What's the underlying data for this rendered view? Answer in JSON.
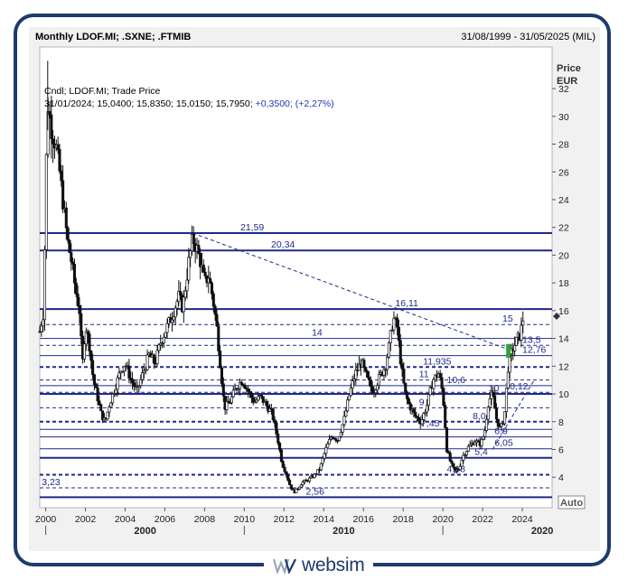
{
  "header": {
    "title": "Monthly LDOF.MI; .SXNE; .FTMIB",
    "date_range": "31/08/1999 - 31/05/2025 (MIL)"
  },
  "legend": {
    "line1": "Cndl; LDOF.MI; Trade Price",
    "line2_values": "31/01/2024; 15,0400; 15,8350; 15,0150; 15,7950;",
    "line2_change": "+0,3500; (+2,27%)"
  },
  "axis": {
    "price_label_1": "Price",
    "price_label_2": "EUR",
    "auto_label": "Auto"
  },
  "logo": {
    "text": "websim"
  },
  "chart_data": {
    "type": "candlestick",
    "title": "Monthly LDOF.MI; .SXNE; .FTMIB",
    "ylabel": "Price EUR",
    "ylim": [
      1.8,
      35
    ],
    "xlim": [
      1999.7,
      2025.5
    ],
    "y_ticks": [
      4,
      6,
      8,
      10,
      12,
      14,
      16,
      18,
      20,
      22,
      24,
      26,
      28,
      30,
      32
    ],
    "x_ticks": [
      "2000",
      "2002",
      "2004",
      "2006",
      "2008",
      "2010",
      "2012",
      "2014",
      "2016",
      "2018",
      "2020",
      "2022",
      "2024"
    ],
    "x_decades": [
      "2000",
      "2010",
      "2020"
    ],
    "grid": false,
    "price_series": [
      [
        1999.7,
        14.5
      ],
      [
        1999.9,
        16.0
      ],
      [
        2000.0,
        25.0
      ],
      [
        2000.1,
        31.0
      ],
      [
        2000.3,
        29.0
      ],
      [
        2000.5,
        28.0
      ],
      [
        2000.7,
        26.0
      ],
      [
        2000.9,
        23.5
      ],
      [
        2001.1,
        21.0
      ],
      [
        2001.3,
        19.5
      ],
      [
        2001.5,
        17.5
      ],
      [
        2001.7,
        16.0
      ],
      [
        2001.85,
        12.0
      ],
      [
        2002.0,
        15.0
      ],
      [
        2002.2,
        13.5
      ],
      [
        2002.4,
        11.0
      ],
      [
        2002.6,
        9.8
      ],
      [
        2002.8,
        8.5
      ],
      [
        2003.0,
        8.0
      ],
      [
        2003.2,
        9.2
      ],
      [
        2003.5,
        10.5
      ],
      [
        2003.8,
        11.8
      ],
      [
        2004.0,
        12.2
      ],
      [
        2004.3,
        11.0
      ],
      [
        2004.6,
        10.2
      ],
      [
        2004.9,
        11.5
      ],
      [
        2005.2,
        12.8
      ],
      [
        2005.5,
        12.2
      ],
      [
        2005.8,
        13.8
      ],
      [
        2006.1,
        14.8
      ],
      [
        2006.4,
        15.8
      ],
      [
        2006.7,
        17.0
      ],
      [
        2006.9,
        16.2
      ],
      [
        2007.2,
        19.5
      ],
      [
        2007.4,
        21.2
      ],
      [
        2007.6,
        20.5
      ],
      [
        2007.8,
        19.5
      ],
      [
        2008.0,
        18.0
      ],
      [
        2008.2,
        18.5
      ],
      [
        2008.4,
        17.0
      ],
      [
        2008.6,
        15.0
      ],
      [
        2008.8,
        12.0
      ],
      [
        2009.0,
        9.0
      ],
      [
        2009.3,
        9.5
      ],
      [
        2009.6,
        10.5
      ],
      [
        2009.9,
        11.0
      ],
      [
        2010.2,
        10.2
      ],
      [
        2010.5,
        9.4
      ],
      [
        2010.8,
        9.8
      ],
      [
        2011.1,
        9.2
      ],
      [
        2011.4,
        8.6
      ],
      [
        2011.7,
        6.6
      ],
      [
        2011.9,
        5.0
      ],
      [
        2012.1,
        4.3
      ],
      [
        2012.3,
        3.4
      ],
      [
        2012.5,
        2.9
      ],
      [
        2012.7,
        3.2
      ],
      [
        2012.9,
        3.6
      ],
      [
        2013.2,
        3.8
      ],
      [
        2013.5,
        4.1
      ],
      [
        2013.8,
        4.6
      ],
      [
        2014.1,
        6.0
      ],
      [
        2014.4,
        7.0
      ],
      [
        2014.7,
        6.7
      ],
      [
        2015.0,
        8.0
      ],
      [
        2015.3,
        10.0
      ],
      [
        2015.6,
        11.5
      ],
      [
        2015.9,
        12.3
      ],
      [
        2016.2,
        11.0
      ],
      [
        2016.5,
        10.2
      ],
      [
        2016.8,
        11.2
      ],
      [
        2017.1,
        12.0
      ],
      [
        2017.3,
        13.5
      ],
      [
        2017.5,
        15.5
      ],
      [
        2017.7,
        14.8
      ],
      [
        2017.9,
        12.0
      ],
      [
        2018.1,
        10.0
      ],
      [
        2018.3,
        9.2
      ],
      [
        2018.6,
        8.4
      ],
      [
        2018.9,
        8.0
      ],
      [
        2019.2,
        9.2
      ],
      [
        2019.5,
        11.0
      ],
      [
        2019.8,
        11.5
      ],
      [
        2020.0,
        10.0
      ],
      [
        2020.2,
        6.0
      ],
      [
        2020.4,
        5.0
      ],
      [
        2020.6,
        4.4
      ],
      [
        2020.8,
        4.6
      ],
      [
        2021.0,
        5.5
      ],
      [
        2021.3,
        6.2
      ],
      [
        2021.6,
        6.6
      ],
      [
        2021.9,
        6.4
      ],
      [
        2022.1,
        7.2
      ],
      [
        2022.3,
        9.5
      ],
      [
        2022.5,
        10.0
      ],
      [
        2022.7,
        8.2
      ],
      [
        2022.9,
        7.4
      ],
      [
        2023.1,
        8.4
      ],
      [
        2023.3,
        12.2
      ],
      [
        2023.5,
        13.2
      ],
      [
        2023.7,
        13.8
      ],
      [
        2023.9,
        14.3
      ],
      [
        2024.08,
        15.79
      ]
    ],
    "horizontal_levels": [
      {
        "label": "21,59",
        "value": 21.59,
        "style": "solid",
        "weight": "heavy"
      },
      {
        "label": "20,34",
        "value": 20.34,
        "style": "solid",
        "weight": "heavy"
      },
      {
        "label": "16,11",
        "value": 16.11,
        "style": "solid",
        "weight": "heavy"
      },
      {
        "label": "15",
        "value": 15.0,
        "style": "dashed",
        "weight": "normal"
      },
      {
        "label": "14",
        "value": 14.0,
        "style": "solid",
        "weight": "normal"
      },
      {
        "label": "13,5",
        "value": 13.5,
        "style": "dashed",
        "weight": "normal"
      },
      {
        "label": "12,76",
        "value": 12.76,
        "style": "solid",
        "weight": "normal"
      },
      {
        "label": "11,935",
        "value": 11.935,
        "style": "dashed",
        "weight": "heavy"
      },
      {
        "label": "11",
        "value": 11.0,
        "style": "dashed",
        "weight": "normal"
      },
      {
        "label": "10,6",
        "value": 10.6,
        "style": "solid",
        "weight": "normal"
      },
      {
        "label": "10",
        "value": 10.0,
        "style": "solid",
        "weight": "heavy"
      },
      {
        "label": "10,12",
        "value": 10.12,
        "style": "dashed",
        "weight": "normal"
      },
      {
        "label": "9",
        "value": 9.0,
        "style": "dashed",
        "weight": "normal"
      },
      {
        "label": "8,0",
        "value": 8.0,
        "style": "dashed",
        "weight": "heavy"
      },
      {
        "label": "7,45",
        "value": 7.45,
        "style": "solid",
        "weight": "normal"
      },
      {
        "label": "6,9",
        "value": 6.9,
        "style": "solid",
        "weight": "normal"
      },
      {
        "label": "6,05",
        "value": 6.05,
        "style": "solid",
        "weight": "normal"
      },
      {
        "label": "5,4",
        "value": 5.4,
        "style": "solid",
        "weight": "heavy"
      },
      {
        "label": "4,18",
        "value": 4.18,
        "style": "dashed",
        "weight": "heavy"
      },
      {
        "label": "3,23",
        "value": 3.23,
        "style": "dashed",
        "weight": "normal"
      },
      {
        "label": "2,56",
        "value": 2.56,
        "style": "solid",
        "weight": "heavy"
      }
    ],
    "trendlines": [
      {
        "from": [
          2007.4,
          21.59
        ],
        "to": [
          2023.3,
          13.2
        ],
        "style": "dashed"
      },
      {
        "from": [
          2022.5,
          6.0
        ],
        "to": [
          2024.6,
          11.0
        ],
        "style": "dashed"
      }
    ]
  }
}
